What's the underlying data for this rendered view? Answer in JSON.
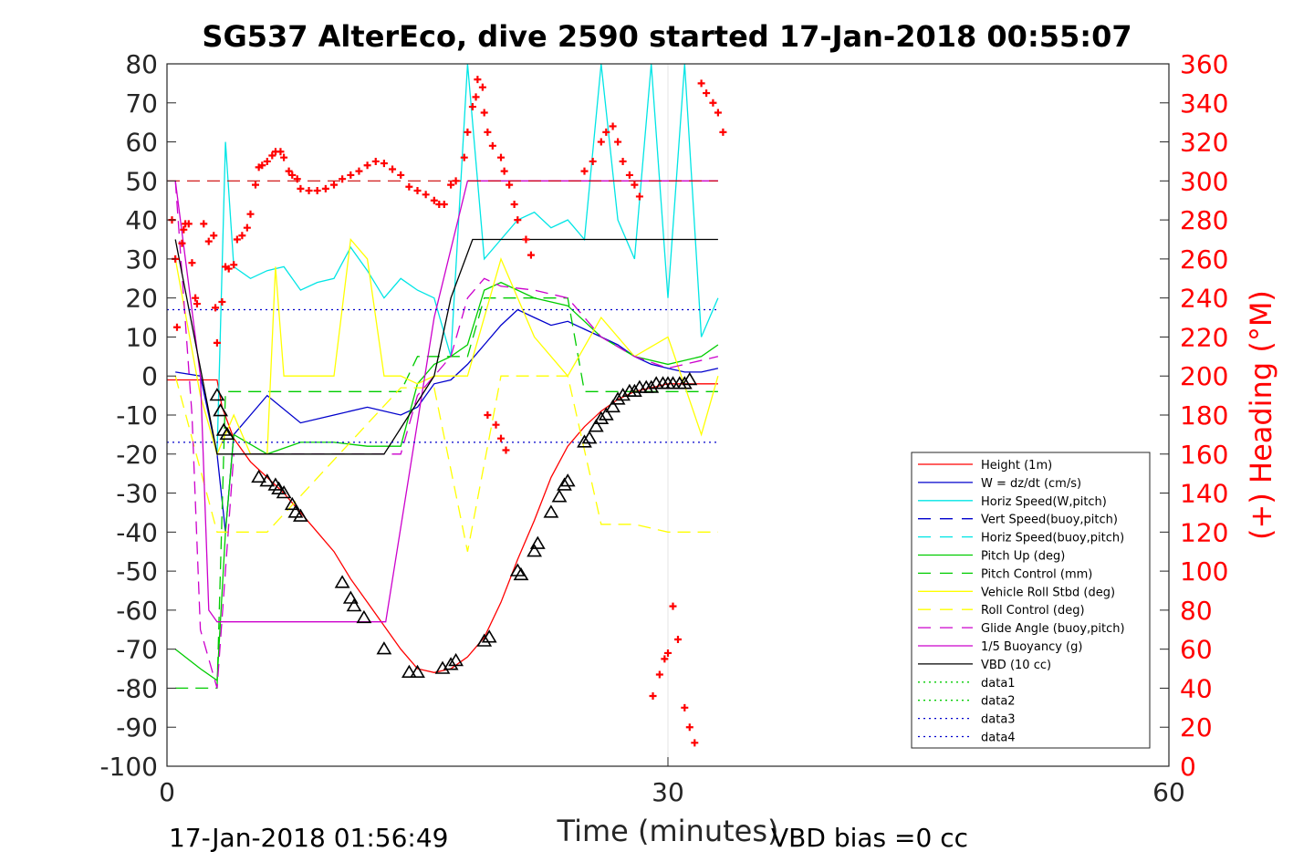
{
  "chart_data": {
    "type": "line",
    "title": "SG537 AlterEco, dive 2590 started 17-Jan-2018 00:55:07",
    "xlabel": "Time (minutes)",
    "ylabel_right": "(+) Heading (°M)",
    "footer_left": "17-Jan-2018 01:56:49",
    "footer_right": "VBD bias =0 cc",
    "xlim": [
      0,
      60
    ],
    "ylim": [
      -100,
      80
    ],
    "ylim_right": [
      0,
      360
    ],
    "x_ticks": [
      "0",
      "30",
      "60"
    ],
    "y_ticks": [
      "80",
      "70",
      "60",
      "50",
      "40",
      "30",
      "20",
      "10",
      "0",
      "-10",
      "-20",
      "-30",
      "-40",
      "-50",
      "-60",
      "-70",
      "-80",
      "-90",
      "-100"
    ],
    "y_ticks_right": [
      "360",
      "340",
      "320",
      "300",
      "280",
      "260",
      "240",
      "220",
      "200",
      "180",
      "160",
      "140",
      "120",
      "100",
      "80",
      "60",
      "40",
      "20",
      "0"
    ],
    "grid": "x-only at 30",
    "legend_position": "lower-right",
    "colors": {
      "height": "#ff0000",
      "w": "#0000cc",
      "horiz": "#00e5e5",
      "pitch": "#00cc00",
      "roll": "#ffff00",
      "glide": "#cc00cc",
      "buoy": "#cc00cc",
      "vbd": "#000000",
      "heading": "#ff0000"
    },
    "series": [
      {
        "name": "Height (1m)",
        "style": "solid",
        "color": "#ff0000",
        "x": [
          0,
          3,
          3.3,
          4,
          5,
          6,
          7,
          8,
          9,
          10,
          11,
          12,
          13,
          14,
          15,
          16,
          17,
          18,
          19,
          20,
          21,
          22,
          23,
          24,
          25,
          26,
          27,
          28,
          29,
          30,
          31,
          32,
          33
        ],
        "y": [
          -1,
          -1,
          -8,
          -16,
          -22,
          -26,
          -30,
          -35,
          -40,
          -45,
          -52,
          -58,
          -64,
          -70,
          -75,
          -76,
          -75,
          -72,
          -67,
          -58,
          -47,
          -37,
          -26,
          -18,
          -13,
          -9,
          -6,
          -4,
          -3,
          -2,
          -2,
          -2,
          -2
        ]
      },
      {
        "name": "W = dz/dt (cm/s)",
        "style": "solid",
        "color": "#0000cc",
        "x": [
          0.5,
          2,
          3,
          3.5,
          4,
          5,
          6,
          8,
          10,
          12,
          14,
          15,
          16,
          17,
          18,
          19,
          20,
          21,
          22,
          23,
          24,
          25,
          26,
          27,
          28,
          29,
          30,
          31,
          32,
          33
        ],
        "y": [
          1,
          0,
          -20,
          -40,
          -15,
          -10,
          -5,
          -12,
          -10,
          -8,
          -10,
          -8,
          -2,
          -1,
          3,
          8,
          13,
          17,
          15,
          13,
          14,
          12,
          10,
          8,
          5,
          3,
          2,
          1,
          1,
          2
        ]
      },
      {
        "name": "Horiz Speed(W,pitch)",
        "style": "solid",
        "color": "#00e5e5",
        "x": [
          3,
          3.5,
          4,
          5,
          6,
          7,
          8,
          9,
          10,
          11,
          12,
          13,
          14,
          15,
          16,
          17,
          18,
          19,
          20,
          21,
          22,
          23,
          24,
          25,
          26,
          27,
          28,
          29,
          30,
          31,
          32,
          33
        ],
        "y": [
          -20,
          60,
          28,
          25,
          27,
          28,
          22,
          24,
          25,
          33,
          27,
          20,
          25,
          22,
          20,
          5,
          80,
          30,
          35,
          40,
          42,
          38,
          40,
          35,
          80,
          40,
          30,
          80,
          20,
          80,
          10,
          20
        ]
      },
      {
        "name": "Vert Speed(buoy,pitch)",
        "style": "dashed",
        "color": "#0000cc",
        "x": [],
        "y": []
      },
      {
        "name": "Horiz Speed(buoy,pitch)",
        "style": "dashed",
        "color": "#00e5e5",
        "x": [],
        "y": []
      },
      {
        "name": "Pitch Up (deg)",
        "style": "solid",
        "color": "#00cc00",
        "x": [
          0.5,
          2,
          3,
          3.5,
          4,
          6,
          8,
          10,
          12,
          14,
          15,
          16,
          17,
          18,
          19,
          20,
          22,
          24,
          26,
          28,
          30,
          32,
          33
        ],
        "y": [
          -70,
          -75,
          -78,
          -40,
          -15,
          -20,
          -17,
          -17,
          -18,
          -18,
          -2,
          3,
          5,
          8,
          22,
          24,
          20,
          18,
          10,
          5,
          3,
          5,
          8
        ]
      },
      {
        "name": "Pitch Control (mm)",
        "style": "dashed",
        "color": "#00cc00",
        "x": [
          0.5,
          3,
          3.5,
          14,
          15,
          18,
          19,
          24,
          25,
          33
        ],
        "y": [
          -80,
          -80,
          -4,
          -4,
          5,
          5,
          20,
          20,
          -4,
          -4
        ]
      },
      {
        "name": "Vehicle Roll Stbd (deg)",
        "style": "solid",
        "color": "#ffff00",
        "x": [
          0.5,
          2,
          3,
          4,
          5,
          6,
          6.5,
          7,
          8,
          10,
          11,
          12,
          13,
          14,
          15,
          16,
          18,
          20,
          22,
          24,
          26,
          28,
          30,
          32,
          33
        ],
        "y": [
          30,
          -5,
          -20,
          -10,
          -20,
          -20,
          28,
          0,
          0,
          0,
          35,
          30,
          0,
          0,
          -2,
          0,
          0,
          30,
          10,
          0,
          15,
          5,
          10,
          -15,
          0
        ]
      },
      {
        "name": "Roll Control (deg)",
        "style": "dashed",
        "color": "#ffff00",
        "x": [
          0.5,
          3,
          4,
          6,
          14,
          16,
          18,
          20,
          24,
          26,
          28,
          30,
          33
        ],
        "y": [
          0,
          -40,
          -40,
          -40,
          -3,
          -3,
          -45,
          0,
          0,
          -38,
          -38,
          -40,
          -40
        ]
      },
      {
        "name": "Glide Angle (buoy,pitch)",
        "style": "dashed",
        "color": "#cc00cc",
        "x": [
          0.5,
          1.5,
          2,
          3,
          4,
          6,
          8,
          10,
          12,
          14,
          15,
          16,
          17,
          18,
          19,
          20,
          22,
          24,
          26,
          28,
          30,
          33
        ],
        "y": [
          50,
          -10,
          -65,
          -80,
          -20,
          -20,
          -20,
          -20,
          -20,
          -20,
          -5,
          0,
          5,
          20,
          25,
          23,
          22,
          20,
          10,
          5,
          2,
          5
        ]
      },
      {
        "name": "1/5 Buoyancy (g)",
        "style": "solid",
        "color": "#cc00cc",
        "x": [
          0.5,
          2,
          2.5,
          3,
          3.3,
          13,
          13.1,
          16,
          18,
          33
        ],
        "y": [
          50,
          0,
          -60,
          -63,
          -63,
          -63,
          -63,
          15,
          50,
          50
        ]
      },
      {
        "name": "VBD (10 cc)",
        "style": "solid",
        "color": "#000000",
        "x": [
          0.5,
          3,
          3.3,
          13,
          16,
          17,
          18.3,
          33
        ],
        "y": [
          35,
          -20,
          -20,
          -20,
          0,
          20,
          35,
          35
        ]
      },
      {
        "name": "data1",
        "style": "dotted",
        "color": "#00cc00",
        "x": [],
        "y": []
      },
      {
        "name": "data2",
        "style": "dotted",
        "color": "#00cc00",
        "x": [],
        "y": []
      },
      {
        "name": "data3",
        "style": "dotted",
        "color": "#0000cc",
        "x": [
          0,
          33
        ],
        "y": [
          -17,
          -17
        ]
      },
      {
        "name": "data4",
        "style": "dotted",
        "color": "#0000cc",
        "x": [
          0,
          33
        ],
        "y": [
          17,
          17
        ]
      }
    ],
    "reference_lines": [
      {
        "axis": "right",
        "y": 300,
        "style": "dashed",
        "color": "#cc0000",
        "x": [
          0,
          33
        ]
      }
    ],
    "markers": {
      "triangles": [
        [
          3,
          -5
        ],
        [
          3.2,
          -9
        ],
        [
          3.4,
          -14
        ],
        [
          3.6,
          -15
        ],
        [
          5.5,
          -26
        ],
        [
          6,
          -27
        ],
        [
          6.5,
          -28
        ],
        [
          6.7,
          -29
        ],
        [
          7,
          -30
        ],
        [
          7.5,
          -33
        ],
        [
          7.7,
          -35
        ],
        [
          8,
          -36
        ],
        [
          10.5,
          -53
        ],
        [
          11,
          -57
        ],
        [
          11.2,
          -59
        ],
        [
          11.8,
          -62
        ],
        [
          13,
          -70
        ],
        [
          14.5,
          -76
        ],
        [
          15,
          -76
        ],
        [
          16.5,
          -75
        ],
        [
          17,
          -74
        ],
        [
          17.3,
          -73
        ],
        [
          19,
          -68
        ],
        [
          19.3,
          -67
        ],
        [
          21,
          -50
        ],
        [
          21.2,
          -51
        ],
        [
          22,
          -45
        ],
        [
          22.2,
          -43
        ],
        [
          23,
          -35
        ],
        [
          23.5,
          -31
        ],
        [
          23.8,
          -28
        ],
        [
          24,
          -27
        ],
        [
          25,
          -17
        ],
        [
          25.3,
          -16
        ],
        [
          25.7,
          -13
        ],
        [
          26,
          -11
        ],
        [
          26.3,
          -10
        ],
        [
          26.7,
          -8
        ],
        [
          27,
          -6
        ],
        [
          27.3,
          -5
        ],
        [
          27.7,
          -4
        ],
        [
          28,
          -4
        ],
        [
          28.3,
          -3
        ],
        [
          28.7,
          -3
        ],
        [
          29,
          -3
        ],
        [
          29.3,
          -2
        ],
        [
          29.7,
          -2
        ],
        [
          30,
          -2
        ],
        [
          30.3,
          -2
        ],
        [
          30.7,
          -2
        ],
        [
          31,
          -2
        ],
        [
          31.3,
          -1
        ]
      ],
      "heading": [
        [
          0.3,
          280
        ],
        [
          0.5,
          260
        ],
        [
          0.6,
          225
        ],
        [
          0.9,
          268
        ],
        [
          1,
          275
        ],
        [
          1.1,
          278
        ],
        [
          1.3,
          278
        ],
        [
          1.5,
          258
        ],
        [
          1.7,
          240
        ],
        [
          1.8,
          237
        ],
        [
          2.2,
          278
        ],
        [
          2.5,
          269
        ],
        [
          2.8,
          272
        ],
        [
          2.9,
          235
        ],
        [
          3,
          217
        ],
        [
          3.3,
          238
        ],
        [
          3.5,
          256
        ],
        [
          3.7,
          255
        ],
        [
          4,
          257
        ],
        [
          4.2,
          270
        ],
        [
          4.5,
          272
        ],
        [
          4.8,
          276
        ],
        [
          5,
          283
        ],
        [
          5.3,
          298
        ],
        [
          5.5,
          307
        ],
        [
          5.7,
          308
        ],
        [
          6,
          310
        ],
        [
          6.3,
          313
        ],
        [
          6.5,
          315
        ],
        [
          6.8,
          315
        ],
        [
          7,
          312
        ],
        [
          7.3,
          305
        ],
        [
          7.5,
          303
        ],
        [
          7.8,
          301
        ],
        [
          8,
          296
        ],
        [
          8.5,
          295
        ],
        [
          9,
          295
        ],
        [
          9.5,
          296
        ],
        [
          10,
          298
        ],
        [
          10.5,
          301
        ],
        [
          11,
          303
        ],
        [
          11.5,
          305
        ],
        [
          12,
          308
        ],
        [
          12.5,
          310
        ],
        [
          13,
          309
        ],
        [
          13.5,
          306
        ],
        [
          14,
          303
        ],
        [
          14.5,
          297
        ],
        [
          15,
          295
        ],
        [
          15.5,
          293
        ],
        [
          16,
          290
        ],
        [
          16.3,
          288
        ],
        [
          16.6,
          288
        ],
        [
          17,
          298
        ],
        [
          17.3,
          300
        ],
        [
          17.8,
          312
        ],
        [
          18,
          325
        ],
        [
          18.3,
          338
        ],
        [
          18.5,
          343
        ],
        [
          18.6,
          352
        ],
        [
          18.9,
          348
        ],
        [
          19,
          335
        ],
        [
          19.2,
          325
        ],
        [
          19.5,
          318
        ],
        [
          20,
          312
        ],
        [
          20.2,
          305
        ],
        [
          20.5,
          298
        ],
        [
          20.8,
          288
        ],
        [
          21,
          280
        ],
        [
          21.5,
          270
        ],
        [
          21.8,
          262
        ],
        [
          19.2,
          180
        ],
        [
          19.7,
          175
        ],
        [
          20,
          168
        ],
        [
          20.3,
          162
        ],
        [
          25,
          305
        ],
        [
          25.5,
          310
        ],
        [
          26,
          320
        ],
        [
          26.3,
          325
        ],
        [
          26.7,
          328
        ],
        [
          27,
          320
        ],
        [
          27.3,
          310
        ],
        [
          27.7,
          303
        ],
        [
          28,
          298
        ],
        [
          28.3,
          292
        ],
        [
          29.1,
          36
        ],
        [
          29.5,
          47
        ],
        [
          29.8,
          55
        ],
        [
          30,
          58
        ],
        [
          30.3,
          82
        ],
        [
          30.6,
          65
        ],
        [
          31,
          30
        ],
        [
          31.3,
          20
        ],
        [
          31.6,
          12
        ],
        [
          32,
          350
        ],
        [
          32.3,
          345
        ],
        [
          32.7,
          340
        ],
        [
          33,
          335
        ],
        [
          33.3,
          325
        ]
      ]
    }
  }
}
